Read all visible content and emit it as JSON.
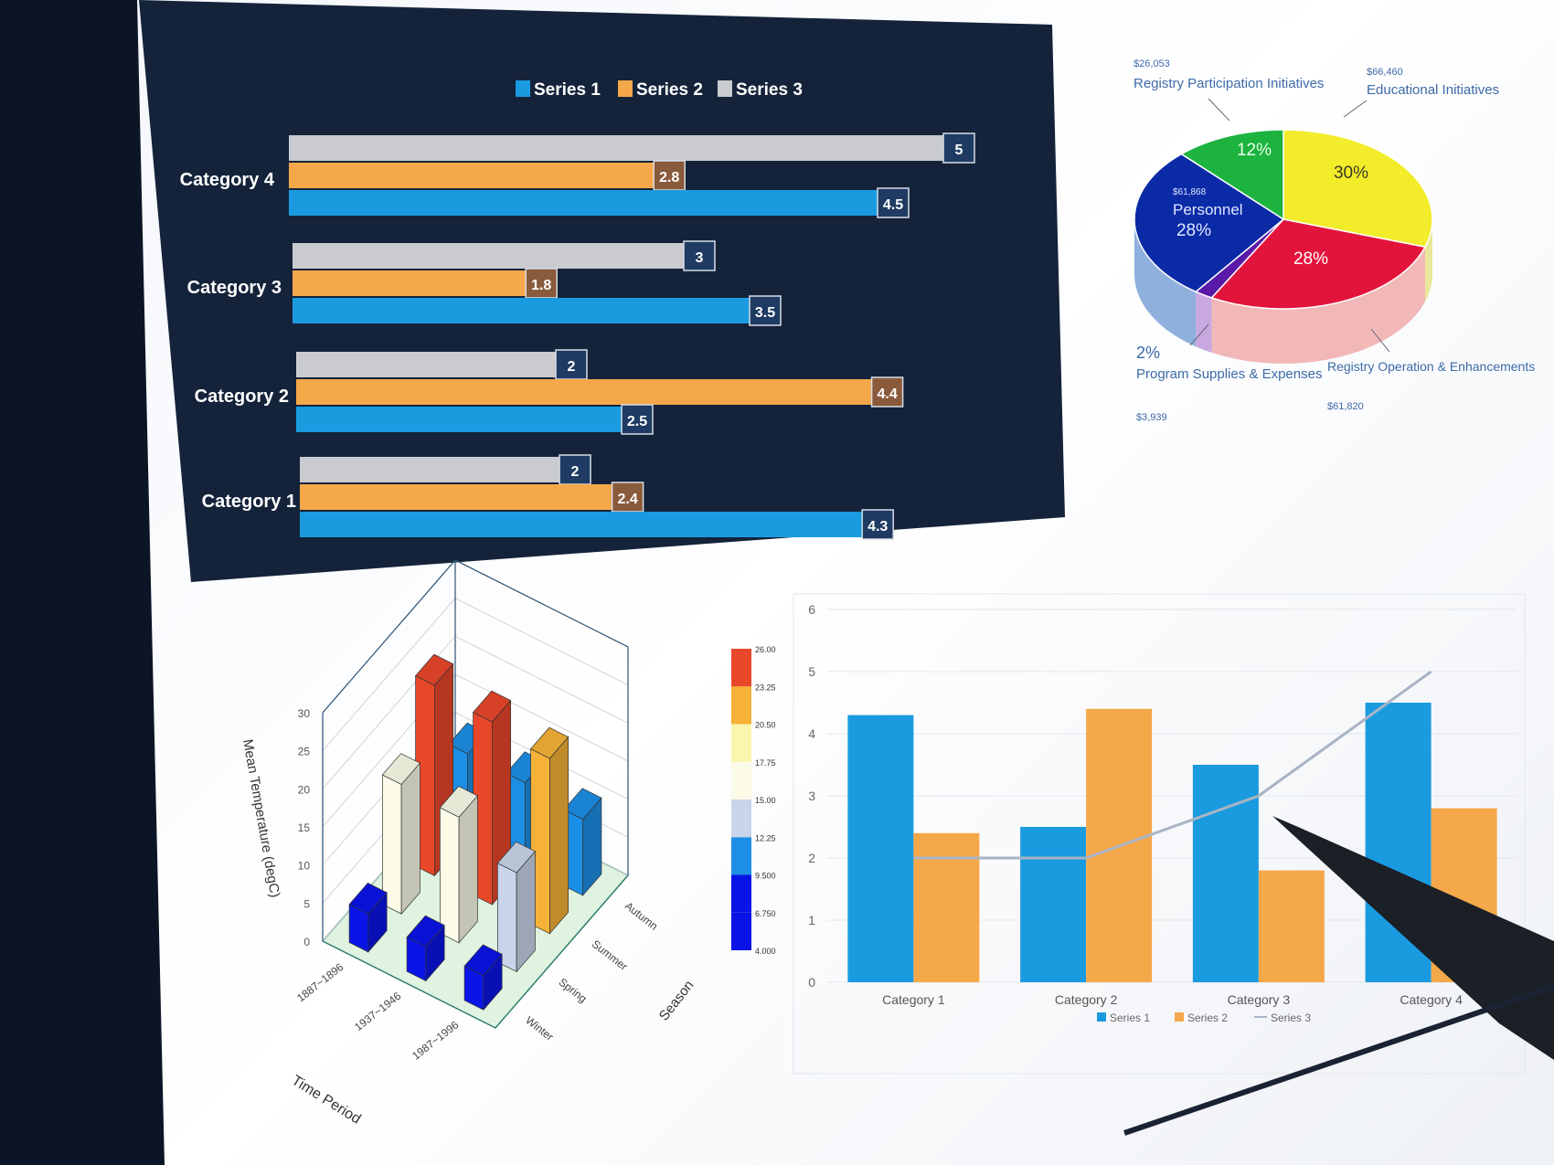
{
  "colors": {
    "series1": "#1a9be0",
    "series2": "#f5a84a",
    "series3": "#c9cbd0",
    "panel_bg": "#14233a",
    "line": "#a8b4c4"
  },
  "chart_data": [
    {
      "type": "bar",
      "orientation": "horizontal",
      "categories": [
        "Category 1",
        "Category 2",
        "Category 3",
        "Category 4"
      ],
      "series": [
        {
          "name": "Series 1",
          "values": [
            4.3,
            2.5,
            3.5,
            4.5
          ]
        },
        {
          "name": "Series 2",
          "values": [
            2.4,
            4.4,
            1.8,
            2.8
          ]
        },
        {
          "name": "Series 3",
          "values": [
            2,
            2,
            3,
            5
          ]
        }
      ],
      "data_labels": true,
      "legend": "top",
      "grid": false
    },
    {
      "type": "pie",
      "style": "3d",
      "slices": [
        {
          "label": "Educational Initiatives",
          "amount": "$66,460",
          "percent": 30,
          "percent_label": "30%",
          "color": "#f2ec2a"
        },
        {
          "label": "Registry Operation & Enhancements",
          "amount": "$61,820",
          "percent": 28,
          "percent_label": "28%",
          "color": "#e3143c"
        },
        {
          "label": "Program Supplies & Expenses",
          "amount": "$3,939",
          "percent": 2,
          "percent_label": "2%",
          "color": "#5a1aa8"
        },
        {
          "label": "Personnel",
          "amount": "$61,868",
          "percent": 28,
          "percent_label": "28%",
          "color": "#0b2aa6"
        },
        {
          "label": "Registry Participation Initiatives",
          "amount": "$26,053",
          "percent": 12,
          "percent_label": "12%",
          "color": "#1db33f"
        }
      ]
    },
    {
      "type": "bar3d",
      "xlabel": "Time Period",
      "ylabel": "Season",
      "zlabel": "Mean Temperature (degC)",
      "x_categories": [
        "1887~1896",
        "1937~1946",
        "1987~1996"
      ],
      "y_categories": [
        "Winter",
        "Spring",
        "Summer",
        "Autumn"
      ],
      "zlim": [
        0,
        30
      ],
      "z_ticks": [
        "0",
        "5",
        "10",
        "15",
        "20",
        "25",
        "30"
      ],
      "values": [
        [
          5,
          17,
          25,
          11
        ],
        [
          4.5,
          16.5,
          24,
          11
        ],
        [
          4.5,
          13,
          23,
          10
        ]
      ],
      "colorbar": {
        "ticks": [
          "4.000",
          "6.750",
          "9.500",
          "12.25",
          "15.00",
          "17.75",
          "20.50",
          "23.25",
          "26.00"
        ],
        "colors": [
          "#0a14e6",
          "#0a14e6",
          "#1c8ee6",
          "#c9d5ea",
          "#fbfbe8",
          "#f9f7ad",
          "#f6b236",
          "#e9472a"
        ]
      }
    },
    {
      "type": "bar+line",
      "categories": [
        "Category 1",
        "Category 2",
        "Category 3",
        "Category 4"
      ],
      "series": [
        {
          "name": "Series 1",
          "kind": "bar",
          "values": [
            4.3,
            2.5,
            3.5,
            4.5
          ]
        },
        {
          "name": "Series 2",
          "kind": "bar",
          "values": [
            2.4,
            4.4,
            1.8,
            2.8
          ]
        },
        {
          "name": "Series 3",
          "kind": "line",
          "values": [
            2,
            2,
            3,
            5
          ]
        }
      ],
      "ylim": [
        0,
        6
      ],
      "y_ticks": [
        "0",
        "1",
        "2",
        "3",
        "4",
        "5",
        "6"
      ],
      "grid": true,
      "legend": "bottom"
    }
  ]
}
